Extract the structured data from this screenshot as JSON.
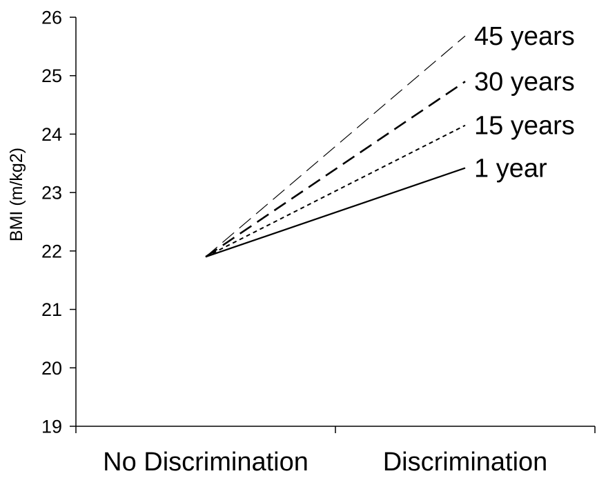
{
  "chart_data": {
    "type": "line",
    "categories": [
      "No Discrimination",
      "Discrimination"
    ],
    "ylabel": "BMI (m/kg2)",
    "xlabel": "",
    "ylim": [
      19,
      26
    ],
    "yticks": [
      19,
      20,
      21,
      22,
      23,
      24,
      25,
      26
    ],
    "grid": false,
    "legend": "inline-right",
    "series": [
      {
        "name": "1 year",
        "x": [
          0.5,
          1.5
        ],
        "values": [
          21.9,
          23.42
        ],
        "dash": "solid",
        "color": "#000000"
      },
      {
        "name": "15 years",
        "x": [
          0.5,
          1.5
        ],
        "values": [
          21.9,
          24.15
        ],
        "dash": "short-dash",
        "color": "#000000"
      },
      {
        "name": "30 years",
        "x": [
          0.5,
          1.5
        ],
        "values": [
          21.9,
          24.9
        ],
        "dash": "long-dash",
        "color": "#000000"
      },
      {
        "name": "45 years",
        "x": [
          0.5,
          1.5
        ],
        "values": [
          21.9,
          25.68
        ],
        "dash": "thin-dash",
        "color": "#000000"
      }
    ]
  }
}
